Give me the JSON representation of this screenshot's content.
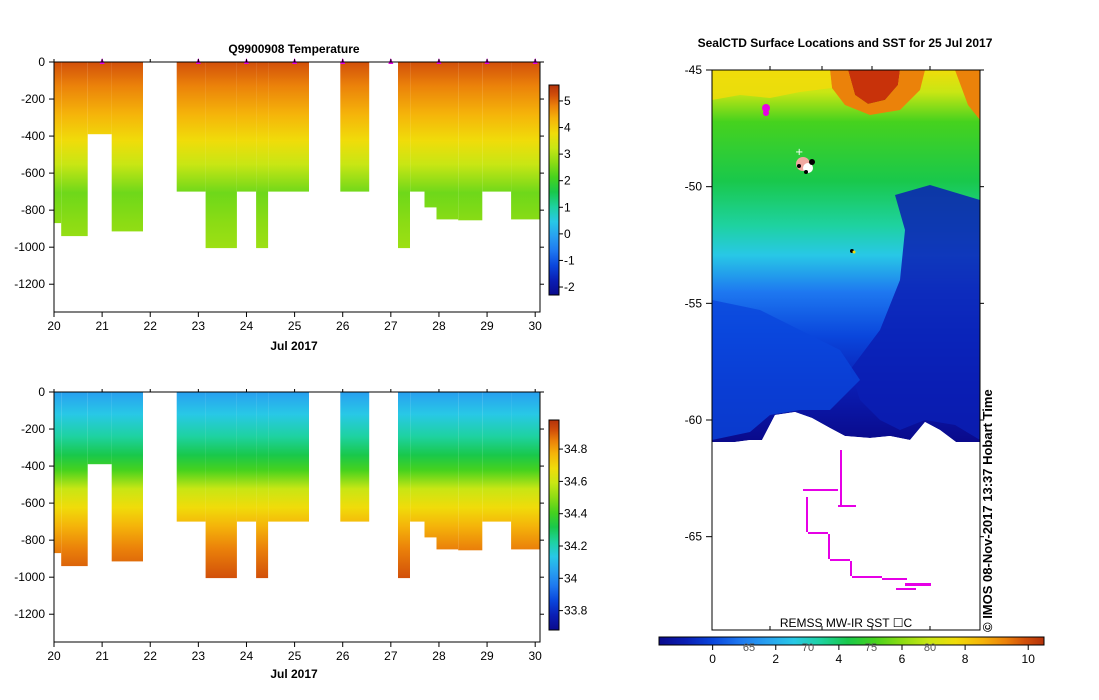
{
  "chart_data": [
    {
      "type": "heatmap",
      "title": "Q9900908  Temperature",
      "xlabel": "Jul 2017",
      "ylabel": "",
      "x_ticks": [
        "20",
        "21",
        "22",
        "23",
        "24",
        "25",
        "26",
        "27",
        "28",
        "29",
        "30"
      ],
      "y_ticks": [
        "0",
        "-200",
        "-400",
        "-600",
        "-800",
        "-1000",
        "-1200"
      ],
      "xlim": [
        20,
        30.1
      ],
      "ylim": [
        -1350,
        0
      ],
      "colorbar_ticks": [
        "5",
        "4",
        "3",
        "2",
        "1",
        "0",
        "-1",
        "-2"
      ],
      "colorbar_range": [
        -2.3,
        5.6
      ],
      "profiles": [
        {
          "start": 20.0,
          "end": 20.15,
          "depth": 870,
          "dive_day": 20.1
        },
        {
          "start": 20.15,
          "end": 20.7,
          "depth": 940,
          "dive_day": 20.45
        },
        {
          "start": 20.7,
          "end": 21.2,
          "depth": 390,
          "dive_day": 20.95
        },
        {
          "start": 21.2,
          "end": 21.85,
          "depth": 915,
          "dive_day": 21.5
        },
        {
          "start": 22.55,
          "end": 23.15,
          "depth": 700,
          "dive_day": 22.85
        },
        {
          "start": 23.15,
          "end": 23.8,
          "depth": 1005,
          "dive_day": 23.5
        },
        {
          "start": 23.8,
          "end": 24.2,
          "depth": 700,
          "dive_day": 24.0
        },
        {
          "start": 24.2,
          "end": 24.45,
          "depth": 1005,
          "dive_day": 24.3
        },
        {
          "start": 24.45,
          "end": 25.3,
          "depth": 700,
          "dive_day": 24.9
        },
        {
          "start": 25.95,
          "end": 26.55,
          "depth": 700,
          "dive_day": 26.25
        },
        {
          "start": 27.15,
          "end": 27.4,
          "depth": 1005,
          "dive_day": 27.28
        },
        {
          "start": 27.4,
          "end": 27.7,
          "depth": 700,
          "dive_day": 27.55
        },
        {
          "start": 27.7,
          "end": 27.95,
          "depth": 785,
          "dive_day": 27.83
        },
        {
          "start": 27.95,
          "end": 28.4,
          "depth": 850,
          "dive_day": 28.18
        },
        {
          "start": 28.4,
          "end": 28.9,
          "depth": 855,
          "dive_day": 28.65
        },
        {
          "start": 28.9,
          "end": 29.5,
          "depth": 700,
          "dive_day": 29.2
        },
        {
          "start": 29.5,
          "end": 30.1,
          "depth": 850,
          "dive_day": 29.8
        }
      ],
      "surface_markers": [
        21.0,
        23.0,
        24.0,
        25.0,
        26.0,
        27.0,
        28.0,
        29.0,
        30.0
      ]
    },
    {
      "type": "heatmap",
      "title": "",
      "xlabel": "Jul 2017",
      "ylabel": "",
      "x_ticks": [
        "20",
        "21",
        "22",
        "23",
        "24",
        "25",
        "26",
        "27",
        "28",
        "29",
        "30"
      ],
      "y_ticks": [
        "0",
        "-200",
        "-400",
        "-600",
        "-800",
        "-1000",
        "-1200"
      ],
      "xlim": [
        20,
        30.1
      ],
      "ylim": [
        -1350,
        0
      ],
      "colorbar_ticks": [
        "34.8",
        "34.6",
        "34.4",
        "34.2",
        "34",
        "33.8"
      ],
      "colorbar_range": [
        33.68,
        34.98
      ]
    },
    {
      "type": "map",
      "title": "SealCTD Surface Locations and SST for 25 Jul 2017",
      "lat_ticks": [
        "-45",
        "-50",
        "-55",
        "-60",
        "-65"
      ],
      "lat_range": [
        -45,
        -69
      ],
      "colorbar_label": "REMSS MW-IR SST ☐C",
      "colorbar_ticks": [
        "0",
        "2",
        "4",
        "6",
        "8",
        "10"
      ],
      "colorbar_overlay_ticks": [
        "65",
        "70",
        "75",
        "80"
      ],
      "colorbar_range": [
        -1.7,
        10.5
      ],
      "credit": "© IMOS 08-Nov-2017 13:37 Hobart Time"
    }
  ],
  "colors": {
    "scale": [
      "#0a0a8c",
      "#0a1eb4",
      "#0a46dc",
      "#1e78f0",
      "#28a0f0",
      "#28c8e6",
      "#1ed2a0",
      "#19c84b",
      "#46d21e",
      "#8cdc14",
      "#c8e614",
      "#f0dc0a",
      "#f5b40a",
      "#eb820a",
      "#d2500a",
      "#b4320a"
    ],
    "marker": "#e600e6"
  }
}
